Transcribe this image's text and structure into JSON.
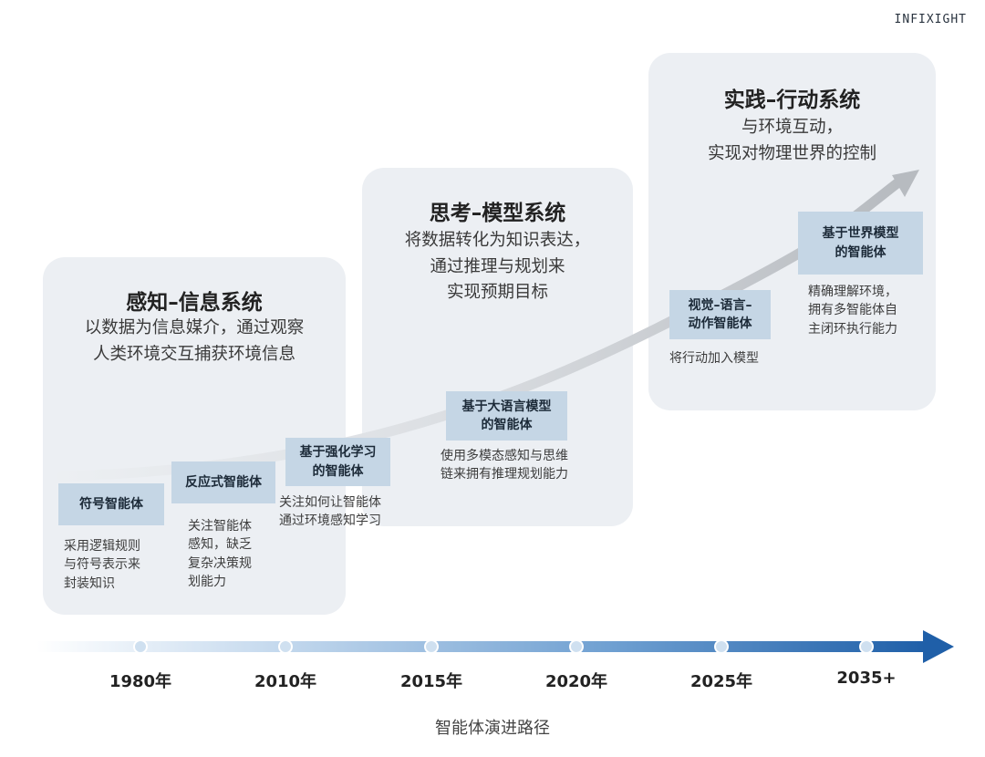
{
  "logo_text": "INFIXIGHT",
  "panels": [
    {
      "title": "感知–信息系统",
      "desc": [
        "以数据为信息媒介，通过观察",
        "人类环境交互捕获环境信息"
      ]
    },
    {
      "title": "思考–模型系统",
      "desc": [
        "将数据转化为知识表达，",
        "通过推理与规划来",
        "实现预期目标"
      ]
    },
    {
      "title": "实践–行动系统",
      "desc": [
        "与环境互动，",
        "实现对物理世界的控制"
      ]
    }
  ],
  "stages": [
    {
      "label": [
        "符号智能体"
      ],
      "desc": [
        "采用逻辑规则",
        "与符号表示来",
        "封装知识"
      ]
    },
    {
      "label": [
        "反应式智能体"
      ],
      "desc": [
        "关注智能体",
        "感知，缺乏",
        "复杂决策规",
        "划能力"
      ]
    },
    {
      "label": [
        "基于强化学习",
        "的智能体"
      ],
      "desc": [
        "关注如何让智能体",
        "通过环境感知学习"
      ]
    },
    {
      "label": [
        "基于大语言模型",
        "的智能体"
      ],
      "desc": [
        "使用多模态感知与思维",
        "链来拥有推理规划能力"
      ]
    },
    {
      "label": [
        "视觉–语言–",
        "动作智能体"
      ],
      "desc": [
        "将行动加入模型"
      ]
    },
    {
      "label": [
        "基于世界模型",
        "的智能体"
      ],
      "desc": [
        "精确理解环境，",
        "拥有多智能体自",
        "主闭环执行能力"
      ]
    }
  ],
  "timeline": {
    "years": [
      "1980年",
      "2010年",
      "2015年",
      "2020年",
      "2025年",
      "2035+"
    ],
    "accent": "#1f5fa8"
  },
  "caption": "智能体演进路径"
}
